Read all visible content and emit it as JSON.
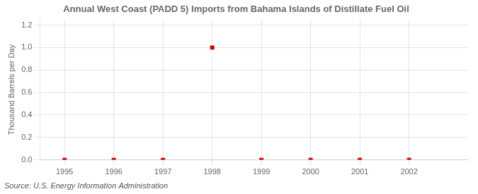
{
  "chart_data": {
    "type": "scatter",
    "title": "Annual West Coast (PADD 5) Imports from Bahama Islands of Distillate Fuel Oil",
    "ylabel": "Thousand Barrels per Day",
    "annotations": [
      "Source: U.S. Energy Information Administration"
    ],
    "x": [
      1995,
      1996,
      1997,
      1998,
      1999,
      2000,
      2001,
      2002
    ],
    "values": [
      0.0,
      0.0,
      0.0,
      1.0,
      0.0,
      0.0,
      0.0,
      0.0
    ],
    "color": "#cc0000",
    "marker": "square",
    "xlim": [
      1994.5,
      2003.2
    ],
    "xticks": [
      1995,
      1996,
      1997,
      1998,
      1999,
      2000,
      2001,
      2002
    ],
    "ylim": [
      0.0,
      1.25
    ],
    "yticks": [
      {
        "value": 0.0,
        "label": "0.0"
      },
      0.2,
      0.4,
      0.6,
      0.8,
      {
        "value": 1.0,
        "label": "1.0"
      },
      1.2
    ],
    "grid": true
  }
}
